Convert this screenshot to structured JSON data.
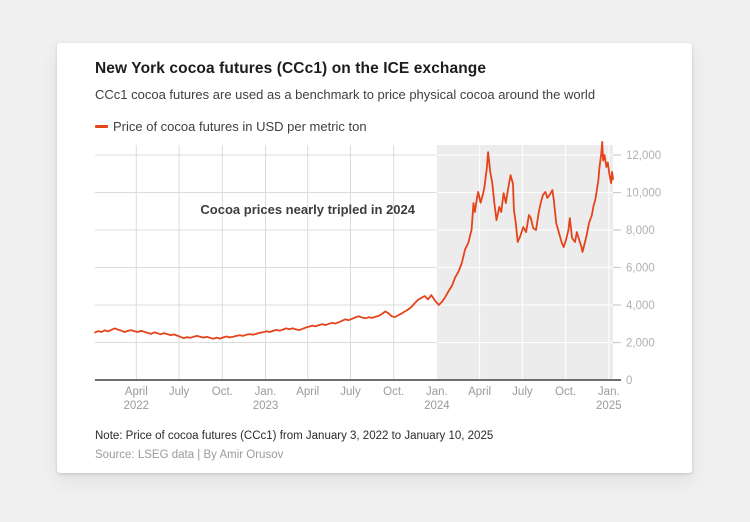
{
  "card": {
    "title": "New York cocoa futures (CCc1) on the ICE exchange",
    "subtitle": "CCc1 cocoa futures are used as a benchmark to price physical cocoa around the world",
    "legend": {
      "label": "Price of cocoa futures in USD per metric ton",
      "color": "#e5441b"
    },
    "annotation": "Cocoa prices nearly tripled in 2024",
    "note": "Note: Price of cocoa futures (CCc1) from January 3, 2022 to January 10, 2025",
    "source": "Source: LSEG data | By Amir Orusov"
  },
  "chart_data": {
    "type": "line",
    "title": "New York cocoa futures (CCc1) on the ICE exchange",
    "xlabel": "",
    "ylabel": "USD per metric ton",
    "grid": true,
    "legend_position": "top-left",
    "y_axis_side": "right",
    "x_range": [
      "2022-01-03",
      "2025-01-10"
    ],
    "ylim": [
      0,
      12800
    ],
    "colors": {
      "line": "#e5441b",
      "grid": "#dcdcdc",
      "grid_on_highlight": "#ffffff",
      "highlight": "#ececec",
      "axis": "#6e6e6e",
      "tick_stub": "#cccccc",
      "y_label": "#b1b1b1",
      "x_label": "#9b9b9b"
    },
    "highlight_region": {
      "from": "2024-01-01",
      "to": "2025-01-10",
      "label": "Cocoa prices nearly tripled in 2024"
    },
    "y_ticks": [
      {
        "value": 0,
        "label": "0"
      },
      {
        "value": 2000,
        "label": "2,000"
      },
      {
        "value": 4000,
        "label": "4,000"
      },
      {
        "value": 6000,
        "label": "6,000"
      },
      {
        "value": 8000,
        "label": "8,000"
      },
      {
        "value": 10000,
        "label": "10,000"
      },
      {
        "value": 12000,
        "label": "12,000"
      }
    ],
    "x_ticks": [
      {
        "date": "2022-04-01",
        "month": "April",
        "year": "2022"
      },
      {
        "date": "2022-07-01",
        "month": "July"
      },
      {
        "date": "2022-10-01",
        "month": "Oct."
      },
      {
        "date": "2023-01-01",
        "month": "Jan.",
        "year": "2023"
      },
      {
        "date": "2023-04-01",
        "month": "April"
      },
      {
        "date": "2023-07-01",
        "month": "July"
      },
      {
        "date": "2023-10-01",
        "month": "Oct."
      },
      {
        "date": "2024-01-01",
        "month": "Jan.",
        "year": "2024"
      },
      {
        "date": "2024-04-01",
        "month": "April"
      },
      {
        "date": "2024-07-01",
        "month": "July"
      },
      {
        "date": "2024-10-01",
        "month": "Oct."
      },
      {
        "date": "2025-01-01",
        "month": "Jan.",
        "year": "2025"
      }
    ],
    "series": [
      {
        "name": "Price of cocoa futures in USD per metric ton",
        "color": "#e5441b",
        "points": [
          [
            "2022-01-03",
            2540
          ],
          [
            "2022-01-10",
            2610
          ],
          [
            "2022-01-17",
            2560
          ],
          [
            "2022-01-24",
            2650
          ],
          [
            "2022-01-31",
            2590
          ],
          [
            "2022-02-07",
            2680
          ],
          [
            "2022-02-14",
            2750
          ],
          [
            "2022-02-21",
            2690
          ],
          [
            "2022-02-28",
            2630
          ],
          [
            "2022-03-07",
            2560
          ],
          [
            "2022-03-14",
            2620
          ],
          [
            "2022-03-21",
            2660
          ],
          [
            "2022-03-28",
            2600
          ],
          [
            "2022-04-04",
            2560
          ],
          [
            "2022-04-11",
            2620
          ],
          [
            "2022-04-18",
            2570
          ],
          [
            "2022-04-25",
            2510
          ],
          [
            "2022-05-02",
            2460
          ],
          [
            "2022-05-09",
            2540
          ],
          [
            "2022-05-16",
            2490
          ],
          [
            "2022-05-23",
            2440
          ],
          [
            "2022-05-30",
            2500
          ],
          [
            "2022-06-06",
            2450
          ],
          [
            "2022-06-13",
            2390
          ],
          [
            "2022-06-20",
            2430
          ],
          [
            "2022-06-27",
            2370
          ],
          [
            "2022-07-04",
            2300
          ],
          [
            "2022-07-11",
            2230
          ],
          [
            "2022-07-18",
            2290
          ],
          [
            "2022-07-25",
            2250
          ],
          [
            "2022-08-01",
            2310
          ],
          [
            "2022-08-08",
            2350
          ],
          [
            "2022-08-15",
            2310
          ],
          [
            "2022-08-22",
            2260
          ],
          [
            "2022-08-29",
            2300
          ],
          [
            "2022-09-05",
            2250
          ],
          [
            "2022-09-12",
            2200
          ],
          [
            "2022-09-19",
            2260
          ],
          [
            "2022-09-26",
            2210
          ],
          [
            "2022-10-03",
            2270
          ],
          [
            "2022-10-10",
            2320
          ],
          [
            "2022-10-17",
            2270
          ],
          [
            "2022-10-24",
            2310
          ],
          [
            "2022-10-31",
            2350
          ],
          [
            "2022-11-07",
            2390
          ],
          [
            "2022-11-14",
            2350
          ],
          [
            "2022-11-21",
            2410
          ],
          [
            "2022-11-28",
            2450
          ],
          [
            "2022-12-05",
            2410
          ],
          [
            "2022-12-12",
            2460
          ],
          [
            "2022-12-19",
            2510
          ],
          [
            "2022-12-27",
            2550
          ],
          [
            "2023-01-03",
            2600
          ],
          [
            "2023-01-10",
            2560
          ],
          [
            "2023-01-17",
            2620
          ],
          [
            "2023-01-24",
            2670
          ],
          [
            "2023-01-31",
            2630
          ],
          [
            "2023-02-07",
            2690
          ],
          [
            "2023-02-14",
            2750
          ],
          [
            "2023-02-21",
            2710
          ],
          [
            "2023-02-28",
            2760
          ],
          [
            "2023-03-07",
            2700
          ],
          [
            "2023-03-14",
            2660
          ],
          [
            "2023-03-21",
            2730
          ],
          [
            "2023-03-28",
            2800
          ],
          [
            "2023-04-04",
            2850
          ],
          [
            "2023-04-11",
            2900
          ],
          [
            "2023-04-18",
            2860
          ],
          [
            "2023-04-25",
            2930
          ],
          [
            "2023-05-02",
            2980
          ],
          [
            "2023-05-09",
            2930
          ],
          [
            "2023-05-16",
            3000
          ],
          [
            "2023-05-23",
            3050
          ],
          [
            "2023-05-30",
            3010
          ],
          [
            "2023-06-06",
            3080
          ],
          [
            "2023-06-13",
            3160
          ],
          [
            "2023-06-20",
            3240
          ],
          [
            "2023-06-27",
            3190
          ],
          [
            "2023-07-05",
            3270
          ],
          [
            "2023-07-12",
            3350
          ],
          [
            "2023-07-19",
            3400
          ],
          [
            "2023-07-26",
            3330
          ],
          [
            "2023-08-02",
            3290
          ],
          [
            "2023-08-09",
            3350
          ],
          [
            "2023-08-16",
            3310
          ],
          [
            "2023-08-23",
            3370
          ],
          [
            "2023-08-30",
            3420
          ],
          [
            "2023-09-06",
            3520
          ],
          [
            "2023-09-13",
            3660
          ],
          [
            "2023-09-20",
            3560
          ],
          [
            "2023-09-27",
            3390
          ],
          [
            "2023-10-04",
            3360
          ],
          [
            "2023-10-11",
            3460
          ],
          [
            "2023-10-18",
            3550
          ],
          [
            "2023-10-25",
            3660
          ],
          [
            "2023-11-01",
            3760
          ],
          [
            "2023-11-08",
            3900
          ],
          [
            "2023-11-15",
            4100
          ],
          [
            "2023-11-22",
            4280
          ],
          [
            "2023-11-29",
            4380
          ],
          [
            "2023-12-06",
            4480
          ],
          [
            "2023-12-13",
            4300
          ],
          [
            "2023-12-20",
            4530
          ],
          [
            "2023-12-27",
            4270
          ],
          [
            "2024-01-05",
            4000
          ],
          [
            "2024-01-12",
            4180
          ],
          [
            "2024-01-19",
            4420
          ],
          [
            "2024-01-26",
            4740
          ],
          [
            "2024-02-02",
            5020
          ],
          [
            "2024-02-09",
            5480
          ],
          [
            "2024-02-16",
            5780
          ],
          [
            "2024-02-23",
            6240
          ],
          [
            "2024-03-01",
            6970
          ],
          [
            "2024-03-08",
            7330
          ],
          [
            "2024-03-15",
            8030
          ],
          [
            "2024-03-19",
            9440
          ],
          [
            "2024-03-22",
            8960
          ],
          [
            "2024-03-26",
            9650
          ],
          [
            "2024-03-29",
            10030
          ],
          [
            "2024-04-03",
            9450
          ],
          [
            "2024-04-08",
            9900
          ],
          [
            "2024-04-11",
            10240
          ],
          [
            "2024-04-16",
            11240
          ],
          [
            "2024-04-19",
            12150
          ],
          [
            "2024-04-24",
            11040
          ],
          [
            "2024-04-28",
            10500
          ],
          [
            "2024-05-02",
            9500
          ],
          [
            "2024-05-07",
            8530
          ],
          [
            "2024-05-13",
            9230
          ],
          [
            "2024-05-17",
            8960
          ],
          [
            "2024-05-22",
            9970
          ],
          [
            "2024-05-27",
            9440
          ],
          [
            "2024-05-31",
            10100
          ],
          [
            "2024-06-06",
            10930
          ],
          [
            "2024-06-11",
            10460
          ],
          [
            "2024-06-13",
            9070
          ],
          [
            "2024-06-17",
            8370
          ],
          [
            "2024-06-21",
            7360
          ],
          [
            "2024-06-26",
            7630
          ],
          [
            "2024-07-03",
            8160
          ],
          [
            "2024-07-09",
            7890
          ],
          [
            "2024-07-15",
            8800
          ],
          [
            "2024-07-19",
            8640
          ],
          [
            "2024-07-24",
            8100
          ],
          [
            "2024-07-30",
            8000
          ],
          [
            "2024-08-05",
            8960
          ],
          [
            "2024-08-09",
            9440
          ],
          [
            "2024-08-14",
            9870
          ],
          [
            "2024-08-19",
            10030
          ],
          [
            "2024-08-23",
            9710
          ],
          [
            "2024-08-28",
            9870
          ],
          [
            "2024-09-03",
            10130
          ],
          [
            "2024-09-06",
            9600
          ],
          [
            "2024-09-11",
            8370
          ],
          [
            "2024-09-17",
            7840
          ],
          [
            "2024-09-23",
            7310
          ],
          [
            "2024-09-27",
            7090
          ],
          [
            "2024-10-02",
            7470
          ],
          [
            "2024-10-07",
            8000
          ],
          [
            "2024-10-10",
            8640
          ],
          [
            "2024-10-15",
            7570
          ],
          [
            "2024-10-21",
            7360
          ],
          [
            "2024-10-25",
            7890
          ],
          [
            "2024-10-30",
            7470
          ],
          [
            "2024-11-04",
            7090
          ],
          [
            "2024-11-06",
            6830
          ],
          [
            "2024-11-11",
            7310
          ],
          [
            "2024-11-15",
            7730
          ],
          [
            "2024-11-20",
            8370
          ],
          [
            "2024-11-26",
            8800
          ],
          [
            "2024-11-29",
            9230
          ],
          [
            "2024-12-03",
            9600
          ],
          [
            "2024-12-06",
            10030
          ],
          [
            "2024-12-10",
            10670
          ],
          [
            "2024-12-12",
            11300
          ],
          [
            "2024-12-16",
            12100
          ],
          [
            "2024-12-18",
            12700
          ],
          [
            "2024-12-20",
            11700
          ],
          [
            "2024-12-23",
            12000
          ],
          [
            "2024-12-27",
            11360
          ],
          [
            "2024-12-30",
            11600
          ],
          [
            "2025-01-02",
            11040
          ],
          [
            "2025-01-06",
            10500
          ],
          [
            "2025-01-08",
            11100
          ],
          [
            "2025-01-10",
            10710
          ]
        ]
      }
    ]
  }
}
